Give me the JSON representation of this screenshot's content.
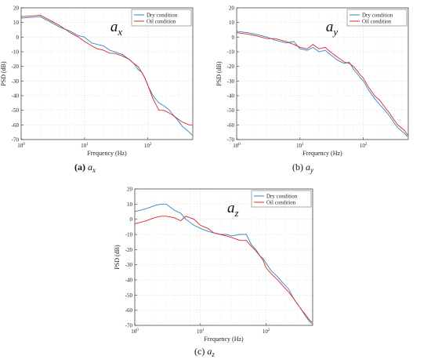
{
  "chart_data": [
    {
      "type": "line",
      "panel_label": "(a)",
      "caption_var": "a",
      "caption_sub": "x",
      "annotation": {
        "var": "a",
        "sub": "x"
      },
      "xlabel": "Frequency (Hz)",
      "ylabel": "PSD (dB)",
      "xscale": "log",
      "xlim": [
        1,
        512
      ],
      "ylim": [
        -70,
        20
      ],
      "yticks": [
        20,
        10,
        0,
        -10,
        -20,
        -30,
        -40,
        -50,
        -60,
        -70
      ],
      "xticks": [
        {
          "base": "10",
          "exp": "0"
        },
        {
          "base": "10",
          "exp": "1"
        },
        {
          "base": "10",
          "exp": "2"
        }
      ],
      "grid": true,
      "legend_placement": "top-right",
      "series": [
        {
          "name": "Dry condition",
          "color": "#2e86c1",
          "x": [
            1,
            1.5,
            2,
            3,
            4,
            6,
            8,
            10,
            13,
            16,
            20,
            25,
            30,
            40,
            50,
            60,
            70,
            80,
            90,
            100,
            120,
            150,
            180,
            220,
            260,
            300,
            350,
            400,
            450,
            500
          ],
          "y": [
            13,
            13.5,
            14,
            10,
            7,
            4,
            1,
            0,
            -4,
            -5,
            -6,
            -9,
            -10,
            -12,
            -15,
            -18,
            -22,
            -24,
            -28,
            -33,
            -40,
            -45,
            -47,
            -50,
            -54,
            -57,
            -61,
            -63,
            -65,
            -67
          ]
        },
        {
          "name": "Oil condition",
          "color": "#d9282a",
          "x": [
            1,
            1.5,
            2,
            3,
            4,
            6,
            8,
            10,
            13,
            16,
            20,
            25,
            30,
            40,
            50,
            60,
            70,
            80,
            90,
            100,
            120,
            150,
            180,
            220,
            260,
            300,
            350,
            400,
            450,
            500
          ],
          "y": [
            14,
            14.5,
            15,
            11,
            8,
            3,
            0,
            -3,
            -6,
            -8,
            -9,
            -11,
            -11,
            -13,
            -15,
            -18,
            -20,
            -24,
            -28,
            -33,
            -42,
            -50,
            -50,
            -52,
            -54,
            -56,
            -58,
            -59,
            -60,
            -60
          ]
        }
      ]
    },
    {
      "type": "line",
      "panel_label": "(b)",
      "caption_var": "a",
      "caption_sub": "y",
      "annotation": {
        "var": "a",
        "sub": "y"
      },
      "xlabel": "Frequency (Hz)",
      "ylabel": "PSD (dB)",
      "xscale": "log",
      "xlim": [
        1,
        512
      ],
      "ylim": [
        -70,
        20
      ],
      "yticks": [
        20,
        10,
        0,
        -10,
        -20,
        -30,
        -40,
        -50,
        -60,
        -70
      ],
      "xticks": [
        {
          "base": "10",
          "exp": "0"
        },
        {
          "base": "10",
          "exp": "1"
        },
        {
          "base": "10",
          "exp": "2"
        }
      ],
      "grid": true,
      "legend_placement": "top-right",
      "series": [
        {
          "name": "Dry condition",
          "color": "#2e86c1",
          "x": [
            1,
            1.5,
            2,
            3,
            4,
            6,
            8,
            10,
            13,
            16,
            20,
            25,
            30,
            40,
            50,
            60,
            70,
            80,
            90,
            100,
            120,
            150,
            180,
            220,
            260,
            300,
            350,
            400,
            450,
            500
          ],
          "y": [
            4,
            3,
            2,
            0,
            -2,
            -4,
            -3,
            -8,
            -9,
            -7,
            -10,
            -9,
            -12,
            -16,
            -18,
            -17,
            -22,
            -25,
            -28,
            -30,
            -36,
            -42,
            -46,
            -50,
            -54,
            -58,
            -62,
            -64,
            -66,
            -68
          ]
        },
        {
          "name": "Oil condition",
          "color": "#d9282a",
          "x": [
            1,
            1.5,
            2,
            3,
            4,
            6,
            8,
            10,
            13,
            16,
            20,
            25,
            30,
            40,
            50,
            60,
            70,
            80,
            90,
            100,
            120,
            150,
            180,
            220,
            260,
            300,
            350,
            400,
            450,
            500
          ],
          "y": [
            3,
            2,
            1,
            -1,
            -1,
            -3,
            -5,
            -7,
            -8,
            -5,
            -8,
            -7,
            -10,
            -14,
            -17,
            -18,
            -20,
            -23,
            -26,
            -28,
            -34,
            -40,
            -43,
            -48,
            -52,
            -56,
            -60,
            -62,
            -64,
            -67
          ]
        }
      ]
    },
    {
      "type": "line",
      "panel_label": "(c)",
      "caption_var": "a",
      "caption_sub": "z",
      "annotation": {
        "var": "a",
        "sub": "z"
      },
      "xlabel": "Frequency (Hz)",
      "ylabel": "PSD (dB)",
      "xscale": "log",
      "xlim": [
        1,
        512
      ],
      "ylim": [
        -70,
        20
      ],
      "yticks": [
        20,
        10,
        0,
        -10,
        -20,
        -30,
        -40,
        -50,
        -60,
        -70
      ],
      "xticks": [
        {
          "base": "10",
          "exp": "0"
        },
        {
          "base": "10",
          "exp": "1"
        },
        {
          "base": "10",
          "exp": "2"
        }
      ],
      "grid": true,
      "legend_placement": "top-right",
      "series": [
        {
          "name": "Dry condition",
          "color": "#2e86c1",
          "x": [
            1,
            1.5,
            2,
            2.5,
            3,
            4,
            5,
            6,
            8,
            10,
            13,
            16,
            20,
            25,
            30,
            40,
            50,
            60,
            70,
            80,
            90,
            100,
            120,
            150,
            180,
            220,
            260,
            300,
            350,
            400,
            450,
            500
          ],
          "y": [
            5,
            7,
            9,
            10,
            10,
            6,
            4,
            0,
            -4,
            -6,
            -8,
            -9,
            -10,
            -10,
            -11,
            -10,
            -10,
            -17,
            -20,
            -24,
            -26,
            -29,
            -34,
            -38,
            -42,
            -46,
            -52,
            -56,
            -60,
            -64,
            -67,
            -69
          ]
        },
        {
          "name": "Oil condition",
          "color": "#d9282a",
          "x": [
            1,
            1.5,
            2,
            2.5,
            3,
            4,
            5,
            6,
            8,
            10,
            13,
            16,
            20,
            25,
            30,
            40,
            50,
            60,
            70,
            80,
            90,
            100,
            120,
            150,
            180,
            220,
            260,
            300,
            350,
            400,
            450,
            500
          ],
          "y": [
            -3,
            -1,
            1,
            2,
            2,
            1,
            -1,
            2,
            0,
            -4,
            -6,
            -9,
            -10,
            -11,
            -12,
            -14,
            -14,
            -18,
            -21,
            -24,
            -27,
            -32,
            -36,
            -40,
            -44,
            -48,
            -52,
            -56,
            -60,
            -63,
            -66,
            -68
          ]
        }
      ]
    }
  ]
}
